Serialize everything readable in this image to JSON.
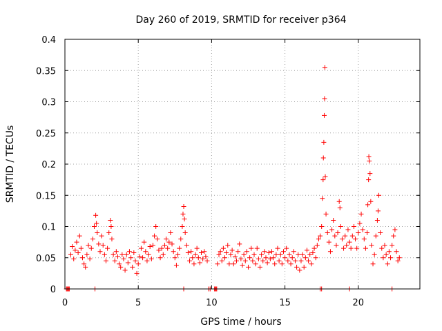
{
  "chart_data": {
    "type": "scatter",
    "title": "Day 260 of 2019, SRMTID for receiver p364",
    "xlabel": "GPS time / hours",
    "ylabel": "SRMTID / TECUs",
    "xlim": [
      0,
      24.2
    ],
    "ylim": [
      0,
      0.4
    ],
    "x_ticks": [
      0,
      5,
      10,
      15,
      20
    ],
    "x_tick_labels": [
      "0",
      "5",
      "10",
      "15",
      "20"
    ],
    "y_ticks": [
      0,
      0.05,
      0.1,
      0.15,
      0.2,
      0.25,
      0.3,
      0.35,
      0.4
    ],
    "y_tick_labels": [
      "0",
      "0.05",
      "0.1",
      "0.15",
      "0.2",
      "0.25",
      "0.3",
      "0.35",
      "0.4"
    ],
    "grid": true,
    "marker": "plus",
    "series_color": "#ff0000",
    "series": [
      {
        "name": "SRMTID",
        "points": [
          [
            0.1,
            0.0
          ],
          [
            0.15,
            0.0
          ],
          [
            0.2,
            0.0
          ],
          [
            0.25,
            0.0
          ],
          [
            0.3,
            0.0
          ],
          [
            2.05,
            0.0
          ],
          [
            8.1,
            0.0
          ],
          [
            9.8,
            0.0
          ],
          [
            9.9,
            0.0
          ],
          [
            10.2,
            0.0
          ],
          [
            10.25,
            0.0
          ],
          [
            10.3,
            0.0
          ],
          [
            10.35,
            0.0
          ],
          [
            17.4,
            0.0
          ],
          [
            17.5,
            0.0
          ],
          [
            19.4,
            0.0
          ],
          [
            22.3,
            0.0
          ],
          [
            0.4,
            0.055
          ],
          [
            0.5,
            0.068
          ],
          [
            0.6,
            0.048
          ],
          [
            0.7,
            0.062
          ],
          [
            0.8,
            0.075
          ],
          [
            0.9,
            0.058
          ],
          [
            1.0,
            0.085
          ],
          [
            1.1,
            0.065
          ],
          [
            1.2,
            0.05
          ],
          [
            1.3,
            0.04
          ],
          [
            1.4,
            0.035
          ],
          [
            1.5,
            0.055
          ],
          [
            1.6,
            0.07
          ],
          [
            1.7,
            0.048
          ],
          [
            1.8,
            0.065
          ],
          [
            1.9,
            0.08
          ],
          [
            2.0,
            0.1
          ],
          [
            2.1,
            0.118
          ],
          [
            2.15,
            0.105
          ],
          [
            2.2,
            0.09
          ],
          [
            2.3,
            0.072
          ],
          [
            2.4,
            0.06
          ],
          [
            2.5,
            0.085
          ],
          [
            2.6,
            0.07
          ],
          [
            2.7,
            0.055
          ],
          [
            2.8,
            0.045
          ],
          [
            2.9,
            0.065
          ],
          [
            3.0,
            0.09
          ],
          [
            3.1,
            0.11
          ],
          [
            3.15,
            0.1
          ],
          [
            3.2,
            0.08
          ],
          [
            3.3,
            0.055
          ],
          [
            3.4,
            0.045
          ],
          [
            3.5,
            0.06
          ],
          [
            3.6,
            0.052
          ],
          [
            3.7,
            0.04
          ],
          [
            3.8,
            0.035
          ],
          [
            3.9,
            0.055
          ],
          [
            4.0,
            0.048
          ],
          [
            4.1,
            0.03
          ],
          [
            4.2,
            0.055
          ],
          [
            4.3,
            0.042
          ],
          [
            4.4,
            0.06
          ],
          [
            4.5,
            0.05
          ],
          [
            4.6,
            0.035
          ],
          [
            4.7,
            0.058
          ],
          [
            4.8,
            0.045
          ],
          [
            4.9,
            0.025
          ],
          [
            5.0,
            0.04
          ],
          [
            5.1,
            0.052
          ],
          [
            5.2,
            0.065
          ],
          [
            5.3,
            0.05
          ],
          [
            5.4,
            0.075
          ],
          [
            5.5,
            0.06
          ],
          [
            5.6,
            0.045
          ],
          [
            5.7,
            0.055
          ],
          [
            5.8,
            0.068
          ],
          [
            5.9,
            0.048
          ],
          [
            6.0,
            0.07
          ],
          [
            6.1,
            0.085
          ],
          [
            6.2,
            0.1
          ],
          [
            6.3,
            0.08
          ],
          [
            6.4,
            0.062
          ],
          [
            6.5,
            0.05
          ],
          [
            6.6,
            0.065
          ],
          [
            6.7,
            0.055
          ],
          [
            6.8,
            0.07
          ],
          [
            6.9,
            0.08
          ],
          [
            7.0,
            0.065
          ],
          [
            7.1,
            0.075
          ],
          [
            7.2,
            0.09
          ],
          [
            7.3,
            0.072
          ],
          [
            7.4,
            0.06
          ],
          [
            7.5,
            0.05
          ],
          [
            7.6,
            0.038
          ],
          [
            7.7,
            0.055
          ],
          [
            7.8,
            0.065
          ],
          [
            7.9,
            0.08
          ],
          [
            8.0,
            0.1
          ],
          [
            8.05,
            0.12
          ],
          [
            8.1,
            0.132
          ],
          [
            8.15,
            0.112
          ],
          [
            8.2,
            0.09
          ],
          [
            8.3,
            0.07
          ],
          [
            8.4,
            0.058
          ],
          [
            8.5,
            0.045
          ],
          [
            8.6,
            0.06
          ],
          [
            8.7,
            0.05
          ],
          [
            8.8,
            0.04
          ],
          [
            8.9,
            0.055
          ],
          [
            9.0,
            0.065
          ],
          [
            9.1,
            0.05
          ],
          [
            9.2,
            0.042
          ],
          [
            9.3,
            0.058
          ],
          [
            9.4,
            0.048
          ],
          [
            9.5,
            0.06
          ],
          [
            9.6,
            0.052
          ],
          [
            9.7,
            0.045
          ],
          [
            10.4,
            0.04
          ],
          [
            10.5,
            0.055
          ],
          [
            10.6,
            0.06
          ],
          [
            10.7,
            0.045
          ],
          [
            10.8,
            0.065
          ],
          [
            10.9,
            0.05
          ],
          [
            11.0,
            0.058
          ],
          [
            11.1,
            0.07
          ],
          [
            11.2,
            0.04
          ],
          [
            11.3,
            0.055
          ],
          [
            11.4,
            0.062
          ],
          [
            11.5,
            0.04
          ],
          [
            11.6,
            0.052
          ],
          [
            11.7,
            0.045
          ],
          [
            11.8,
            0.06
          ],
          [
            11.9,
            0.072
          ],
          [
            12.0,
            0.048
          ],
          [
            12.1,
            0.038
          ],
          [
            12.2,
            0.055
          ],
          [
            12.3,
            0.045
          ],
          [
            12.4,
            0.06
          ],
          [
            12.5,
            0.035
          ],
          [
            12.6,
            0.05
          ],
          [
            12.7,
            0.065
          ],
          [
            12.8,
            0.045
          ],
          [
            12.9,
            0.055
          ],
          [
            13.0,
            0.04
          ],
          [
            13.1,
            0.065
          ],
          [
            13.2,
            0.048
          ],
          [
            13.3,
            0.035
          ],
          [
            13.4,
            0.055
          ],
          [
            13.5,
            0.045
          ],
          [
            13.6,
            0.06
          ],
          [
            13.7,
            0.05
          ],
          [
            13.8,
            0.042
          ],
          [
            13.9,
            0.058
          ],
          [
            14.0,
            0.048
          ],
          [
            14.1,
            0.06
          ],
          [
            14.2,
            0.05
          ],
          [
            14.3,
            0.04
          ],
          [
            14.4,
            0.055
          ],
          [
            14.5,
            0.065
          ],
          [
            14.6,
            0.045
          ],
          [
            14.7,
            0.055
          ],
          [
            14.8,
            0.04
          ],
          [
            14.9,
            0.06
          ],
          [
            15.0,
            0.05
          ],
          [
            15.1,
            0.065
          ],
          [
            15.2,
            0.045
          ],
          [
            15.3,
            0.055
          ],
          [
            15.4,
            0.04
          ],
          [
            15.5,
            0.05
          ],
          [
            15.6,
            0.06
          ],
          [
            15.7,
            0.045
          ],
          [
            15.8,
            0.035
          ],
          [
            15.9,
            0.055
          ],
          [
            16.0,
            0.03
          ],
          [
            16.1,
            0.045
          ],
          [
            16.2,
            0.055
          ],
          [
            16.3,
            0.035
          ],
          [
            16.4,
            0.05
          ],
          [
            16.5,
            0.062
          ],
          [
            16.6,
            0.045
          ],
          [
            16.7,
            0.055
          ],
          [
            16.8,
            0.04
          ],
          [
            16.9,
            0.058
          ],
          [
            17.0,
            0.065
          ],
          [
            17.1,
            0.05
          ],
          [
            17.2,
            0.07
          ],
          [
            17.3,
            0.08
          ],
          [
            17.4,
            0.085
          ],
          [
            17.5,
            0.1
          ],
          [
            17.55,
            0.145
          ],
          [
            17.6,
            0.175
          ],
          [
            17.62,
            0.21
          ],
          [
            17.65,
            0.235
          ],
          [
            17.68,
            0.278
          ],
          [
            17.7,
            0.305
          ],
          [
            17.72,
            0.355
          ],
          [
            17.75,
            0.18
          ],
          [
            17.8,
            0.12
          ],
          [
            17.9,
            0.09
          ],
          [
            18.0,
            0.075
          ],
          [
            18.1,
            0.06
          ],
          [
            18.2,
            0.095
          ],
          [
            18.3,
            0.11
          ],
          [
            18.4,
            0.085
          ],
          [
            18.5,
            0.07
          ],
          [
            18.6,
            0.09
          ],
          [
            18.7,
            0.14
          ],
          [
            18.75,
            0.13
          ],
          [
            18.8,
            0.1
          ],
          [
            18.9,
            0.08
          ],
          [
            19.0,
            0.065
          ],
          [
            19.1,
            0.085
          ],
          [
            19.2,
            0.07
          ],
          [
            19.3,
            0.095
          ],
          [
            19.4,
            0.075
          ],
          [
            19.5,
            0.065
          ],
          [
            19.6,
            0.085
          ],
          [
            19.7,
            0.1
          ],
          [
            19.8,
            0.08
          ],
          [
            19.9,
            0.065
          ],
          [
            20.0,
            0.09
          ],
          [
            20.1,
            0.105
          ],
          [
            20.2,
            0.12
          ],
          [
            20.3,
            0.095
          ],
          [
            20.4,
            0.08
          ],
          [
            20.5,
            0.065
          ],
          [
            20.6,
            0.09
          ],
          [
            20.65,
            0.135
          ],
          [
            20.7,
            0.175
          ],
          [
            20.72,
            0.212
          ],
          [
            20.75,
            0.205
          ],
          [
            20.8,
            0.185
          ],
          [
            20.85,
            0.14
          ],
          [
            20.9,
            0.07
          ],
          [
            21.0,
            0.04
          ],
          [
            21.1,
            0.055
          ],
          [
            21.2,
            0.085
          ],
          [
            21.3,
            0.11
          ],
          [
            21.35,
            0.125
          ],
          [
            21.4,
            0.15
          ],
          [
            21.5,
            0.09
          ],
          [
            21.6,
            0.065
          ],
          [
            21.7,
            0.05
          ],
          [
            21.8,
            0.07
          ],
          [
            21.9,
            0.055
          ],
          [
            22.0,
            0.04
          ],
          [
            22.1,
            0.06
          ],
          [
            22.2,
            0.05
          ],
          [
            22.3,
            0.07
          ],
          [
            22.4,
            0.085
          ],
          [
            22.5,
            0.095
          ],
          [
            22.6,
            0.06
          ],
          [
            22.7,
            0.045
          ],
          [
            22.8,
            0.05
          ]
        ]
      }
    ]
  }
}
